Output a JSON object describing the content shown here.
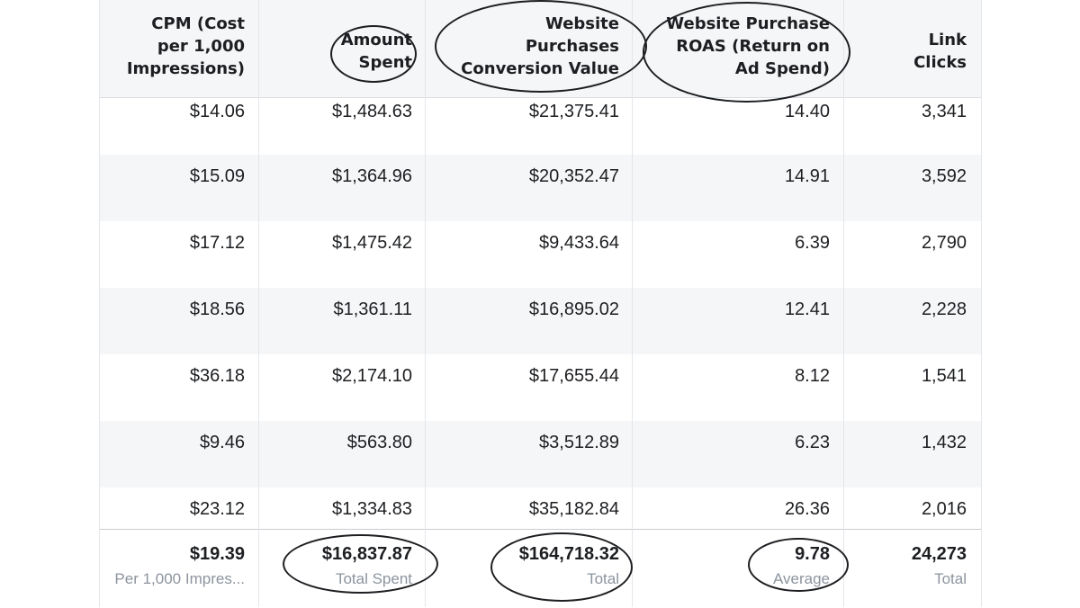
{
  "table": {
    "columns": [
      {
        "key": "cpm",
        "lines": [
          "CPM (Cost",
          "per 1,000",
          "Impressions)"
        ]
      },
      {
        "key": "amount_spent",
        "lines": [
          "Amount",
          "Spent"
        ]
      },
      {
        "key": "conversion_value",
        "lines": [
          "Website",
          "Purchases",
          "Conversion Value"
        ]
      },
      {
        "key": "roas",
        "lines": [
          "Website Purchase",
          "ROAS (Return on",
          "Ad Spend)"
        ]
      },
      {
        "key": "link_clicks",
        "lines": [
          "Link",
          "Clicks"
        ]
      }
    ],
    "rows": [
      [
        "$14.06",
        "$1,484.63",
        "$21,375.41",
        "14.40",
        "3,341"
      ],
      [
        "$15.09",
        "$1,364.96",
        "$20,352.47",
        "14.91",
        "3,592"
      ],
      [
        "$17.12",
        "$1,475.42",
        "$9,433.64",
        "6.39",
        "2,790"
      ],
      [
        "$18.56",
        "$1,361.11",
        "$16,895.02",
        "12.41",
        "2,228"
      ],
      [
        "$36.18",
        "$2,174.10",
        "$17,655.44",
        "8.12",
        "1,541"
      ],
      [
        "$9.46",
        "$563.80",
        "$3,512.89",
        "6.23",
        "1,432"
      ],
      [
        "$23.12",
        "$1,334.83",
        "$35,182.84",
        "26.36",
        "2,016"
      ]
    ],
    "totals": [
      {
        "value": "$19.39",
        "label": "Per 1,000 Impres..."
      },
      {
        "value": "$16,837.87",
        "label": "Total Spent"
      },
      {
        "value": "$164,718.32",
        "label": "Total"
      },
      {
        "value": "9.78",
        "label": "Average"
      },
      {
        "value": "24,273",
        "label": "Total"
      }
    ]
  },
  "colors": {
    "header_bg": "#f5f6f7",
    "stripe_bg": "#f5f6f8",
    "grid": "#e4e6ea",
    "subtext": "#8d949e",
    "annotation": "#1c1e21"
  }
}
